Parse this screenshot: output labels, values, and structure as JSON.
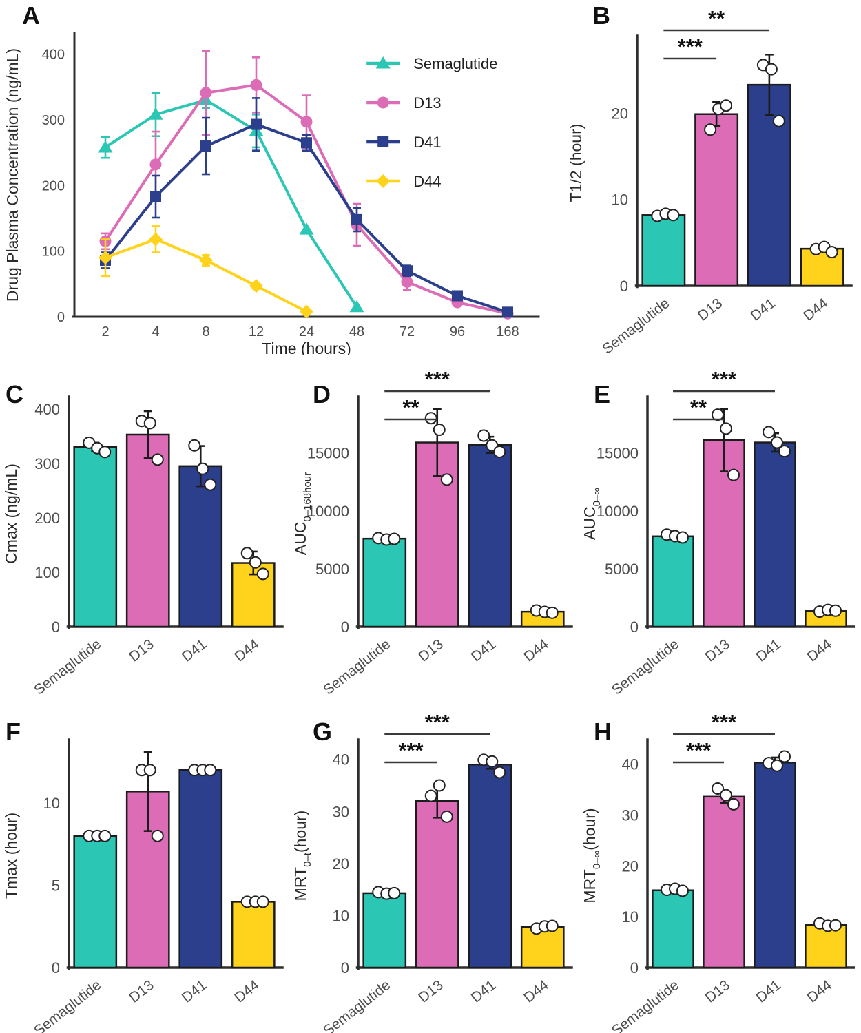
{
  "colors": {
    "series": [
      "#2bc7b4",
      "#dc6cb5",
      "#2b3f8c",
      "#ffd21c"
    ],
    "bar_stroke": "#1c1c1c",
    "axis": "#2e2e2e",
    "tick_text": "#4d4d4d",
    "label_text": "#2b2b2b",
    "sig_line": "#3a3a3a",
    "sig_text": "#111111",
    "point_fill": "#ffffff",
    "point_stroke": "#222222"
  },
  "groups": [
    "Semaglutide",
    "D13",
    "D41",
    "D44"
  ],
  "chart_data": [
    {
      "panel": "A",
      "type": "line",
      "xlabel": "Time (hours)",
      "ylabel": [
        {
          "text": "Drug Plasma Concentration (ng/mL)"
        }
      ],
      "x_categories": [
        "2",
        "4",
        "8",
        "12",
        "24",
        "48",
        "72",
        "96",
        "168"
      ],
      "yticks": [
        0,
        100,
        200,
        300,
        400
      ],
      "ylim": [
        0,
        432
      ],
      "legend_position": "top-right",
      "series": [
        {
          "name": "Semaglutide",
          "marker": "triangle",
          "values": [
            258,
            308,
            330,
            283,
            133,
            15,
            null,
            null,
            null
          ],
          "errors": [
            16,
            33,
            12,
            25,
            0,
            0,
            null,
            null,
            null
          ]
        },
        {
          "name": "D13",
          "marker": "circle",
          "values": [
            115,
            232,
            341,
            353,
            297,
            140,
            53,
            22,
            5
          ],
          "errors": [
            12,
            50,
            64,
            42,
            40,
            32,
            12,
            5,
            0
          ]
        },
        {
          "name": "D41",
          "marker": "square",
          "values": [
            86,
            183,
            260,
            293,
            265,
            148,
            70,
            32,
            7
          ],
          "errors": [
            12,
            32,
            43,
            40,
            12,
            18,
            8,
            4,
            0
          ]
        },
        {
          "name": "D44",
          "marker": "diamond",
          "values": [
            90,
            118,
            86,
            47,
            8,
            null,
            null,
            null,
            null
          ],
          "errors": [
            28,
            20,
            8,
            4,
            0,
            null,
            null,
            null,
            null
          ]
        }
      ]
    },
    {
      "panel": "B",
      "type": "bar",
      "ylabel": [
        {
          "text": "T1/2 (hour)"
        }
      ],
      "categories": [
        "Semaglutide",
        "D13",
        "D41",
        "D44"
      ],
      "values": [
        8.2,
        19.9,
        23.3,
        4.3
      ],
      "errors": [
        0,
        1.4,
        3.5,
        0
      ],
      "points": [
        [
          8.1,
          8.35,
          8.2
        ],
        [
          18.1,
          20.5,
          20.9
        ],
        [
          25.6,
          25.1,
          19.1
        ],
        [
          4.25,
          4.5,
          3.9
        ]
      ],
      "yticks": [
        0,
        10,
        20
      ],
      "ylim": [
        0,
        28.5
      ],
      "sig": [
        {
          "from": 0,
          "to": 1,
          "label": "***",
          "level": "lower"
        },
        {
          "from": 0,
          "to": 2,
          "label": "**",
          "level": "upper"
        }
      ]
    },
    {
      "panel": "C",
      "type": "bar",
      "ylabel": [
        {
          "text": "Cmax (ng/mL)"
        }
      ],
      "categories": [
        "Semaglutide",
        "D13",
        "D41",
        "D44"
      ],
      "values": [
        330,
        353,
        295,
        117
      ],
      "errors": [
        8,
        43,
        37,
        21
      ],
      "points": [
        [
          338,
          328,
          321
        ],
        [
          378,
          374,
          307
        ],
        [
          333,
          290,
          261
        ],
        [
          135,
          118,
          97
        ]
      ],
      "yticks": [
        0,
        100,
        200,
        300,
        400
      ],
      "ylim": [
        0,
        415
      ],
      "sig": []
    },
    {
      "panel": "D",
      "type": "bar",
      "ylabel": [
        {
          "text": "AUC"
        },
        {
          "text": "0–168hour",
          "sub": true
        }
      ],
      "categories": [
        "Semaglutide",
        "D13",
        "D41",
        "D44"
      ],
      "values": [
        7600,
        15900,
        15700,
        1300
      ],
      "errors": [
        0,
        2900,
        700,
        0
      ],
      "points": [
        [
          7650,
          7520,
          7580
        ],
        [
          18000,
          17000,
          12700
        ],
        [
          16500,
          15650,
          15100
        ],
        [
          1400,
          1280,
          1200
        ]
      ],
      "yticks": [
        0,
        5000,
        10000,
        15000
      ],
      "ylim": [
        0,
        19500
      ],
      "sig": [
        {
          "from": 0,
          "to": 1,
          "label": "**",
          "level": "lower"
        },
        {
          "from": 0,
          "to": 2,
          "label": "***",
          "level": "upper"
        }
      ]
    },
    {
      "panel": "E",
      "type": "bar",
      "ylabel": [
        {
          "text": "AUC"
        },
        {
          "text": "0–∞",
          "sub": true
        }
      ],
      "categories": [
        "Semaglutide",
        "D13",
        "D41",
        "D44"
      ],
      "values": [
        7800,
        16100,
        15900,
        1350
      ],
      "errors": [
        0,
        2700,
        800,
        0
      ],
      "points": [
        [
          7950,
          7820,
          7700
        ],
        [
          18300,
          17100,
          13100
        ],
        [
          16800,
          15900,
          15150
        ],
        [
          1300,
          1450,
          1380
        ]
      ],
      "yticks": [
        0,
        5000,
        10000,
        15000
      ],
      "ylim": [
        0,
        19500
      ],
      "sig": [
        {
          "from": 0,
          "to": 1,
          "label": "**",
          "level": "lower"
        },
        {
          "from": 0,
          "to": 2,
          "label": "***",
          "level": "upper"
        }
      ]
    },
    {
      "panel": "F",
      "type": "bar",
      "ylabel": [
        {
          "text": "Tmax (hour)"
        }
      ],
      "categories": [
        "Semaglutide",
        "D13",
        "D41",
        "D44"
      ],
      "values": [
        8,
        10.7,
        12,
        4
      ],
      "errors": [
        0,
        2.4,
        0,
        0
      ],
      "points": [
        [
          8,
          8,
          8
        ],
        [
          12,
          12,
          8
        ],
        [
          12,
          12,
          12
        ],
        [
          4,
          4,
          4
        ]
      ],
      "yticks": [
        0,
        5,
        10
      ],
      "ylim": [
        0,
        13.6
      ],
      "sig": []
    },
    {
      "panel": "G",
      "type": "bar",
      "ylabel": [
        {
          "text": "MRT"
        },
        {
          "text": "0–t",
          "sub": true
        },
        {
          "text": "(hour)"
        }
      ],
      "categories": [
        "Semaglutide",
        "D13",
        "D41",
        "D44"
      ],
      "values": [
        14.3,
        32,
        39,
        7.8
      ],
      "errors": [
        0,
        3.2,
        0.8,
        0
      ],
      "points": [
        [
          14.5,
          14.2,
          14.3
        ],
        [
          33,
          35,
          29
        ],
        [
          39.9,
          39.6,
          37.5
        ],
        [
          7.5,
          7.9,
          8.0
        ]
      ],
      "yticks": [
        0,
        10,
        20,
        30,
        40
      ],
      "ylim": [
        0,
        43
      ],
      "sig": [
        {
          "from": 0,
          "to": 1,
          "label": "***",
          "level": "lower"
        },
        {
          "from": 0,
          "to": 2,
          "label": "***",
          "level": "upper"
        }
      ]
    },
    {
      "panel": "H",
      "type": "bar",
      "ylabel": [
        {
          "text": "MRT"
        },
        {
          "text": "0–∞",
          "sub": true
        },
        {
          "text": "(hour)"
        }
      ],
      "categories": [
        "Semaglutide",
        "D13",
        "D41",
        "D44"
      ],
      "values": [
        15.2,
        33.6,
        40.3,
        8.4
      ],
      "errors": [
        0,
        1.2,
        1.0,
        0
      ],
      "points": [
        [
          15.3,
          15.5,
          15.1
        ],
        [
          35.2,
          33.9,
          32.1
        ],
        [
          40.2,
          39.7,
          41.5
        ],
        [
          8.7,
          8.2,
          8.3
        ]
      ],
      "yticks": [
        0,
        10,
        20,
        30,
        40
      ],
      "ylim": [
        0,
        44
      ],
      "sig": [
        {
          "from": 0,
          "to": 1,
          "label": "***",
          "level": "lower"
        },
        {
          "from": 0,
          "to": 2,
          "label": "***",
          "level": "upper"
        }
      ]
    }
  ]
}
